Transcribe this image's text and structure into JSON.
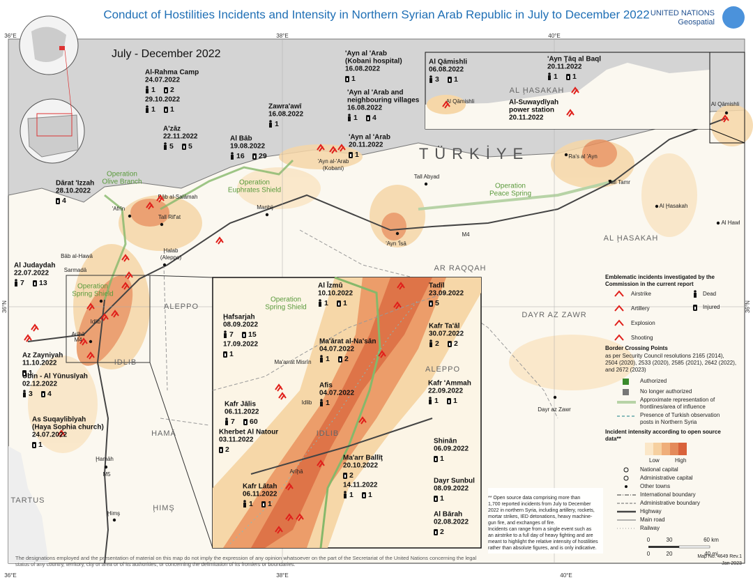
{
  "header": {
    "title": "Conduct of Hostilities Incidents and Intensity in Northern Syrian Arab Republic in July to December 2022",
    "org": "UNITED NATIONS",
    "sub": "Geospatial"
  },
  "period": "July - December 2022",
  "graticule": [
    "36°E",
    "38°E",
    "40°E",
    "36°N",
    "36°N",
    "36°E",
    "38°E",
    "40°E"
  ],
  "places": [
    "TÜRKİYE",
    "ALEPPO",
    "IDLIB",
    "HAMĀ",
    "ḨIMŞ",
    "TARTUS",
    "AR RAQQAH",
    "DAYR AZ ZAWR",
    "AL ḨASAKAH",
    "Ḩalab",
    "(Aleppo)",
    "'Afrīn",
    "Tall Rif'at",
    "Bāb al-Salāmah",
    "Manbij",
    "Tall Abyad",
    "Ra's al 'Ayn",
    "Tall Tamr",
    "Al Ḩasakah",
    "Al Hawl",
    "'Ayn 'Īsā",
    "Al Qāmishli",
    "Dayr az Zawr",
    "Bāb al-Hawā",
    "Sarmadā",
    "Idlib",
    "Arīḩā",
    "Ḩamāh",
    "Ḩimş",
    "'Ayn al-'Arab",
    "(Kobani)",
    "M4",
    "M4",
    "M5",
    "Operation",
    "Olive Branch",
    "Operation",
    "Euphrates Shield",
    "Operation",
    "Peace Spring",
    "Operation",
    "Spring Shield",
    "Operation",
    "Spring Shield",
    "Ma'arrat Misrīn",
    "Idlib",
    "IDLIB",
    "ALEPPO",
    "Arīḩā",
    "AL ḨASAKAH",
    "Al Qāmishli"
  ],
  "incidents": [
    {
      "name": [
        "Al-Rahma Camp"
      ],
      "reports": [
        {
          "date": "24.07.2022",
          "dead": 1,
          "injured": 2
        },
        {
          "date": "29.10.2022",
          "dead": 1,
          "injured": 1
        }
      ]
    },
    {
      "name": [
        "A'zāz"
      ],
      "reports": [
        {
          "date": "22.11.2022",
          "dead": 5,
          "injured": 5
        }
      ]
    },
    {
      "name": [
        "Al Bāb"
      ],
      "reports": [
        {
          "date": "19.08.2022",
          "dead": 16,
          "injured": 29
        }
      ]
    },
    {
      "name": [
        "Zawra'awī"
      ],
      "reports": [
        {
          "date": "16.08.2022",
          "dead": 1
        }
      ]
    },
    {
      "name": [
        "'Ayn al 'Arab",
        "(Kobani hospital)"
      ],
      "reports": [
        {
          "date": "16.08.2022",
          "injured": 1
        }
      ]
    },
    {
      "name": [
        "'Ayn al 'Arab and",
        "neighbouring villages"
      ],
      "reports": [
        {
          "date": "16.08.2022",
          "dead": 1,
          "injured": 4
        }
      ]
    },
    {
      "name": [
        "'Ayn al 'Arab"
      ],
      "reports": [
        {
          "date": "20.11.2022",
          "injured": 1
        }
      ]
    },
    {
      "name": [
        "Dārat 'Izzah"
      ],
      "reports": [
        {
          "date": "28.10.2022",
          "injured": 4
        }
      ]
    },
    {
      "name": [
        "Al Judaydah"
      ],
      "reports": [
        {
          "date": "22.07.2022",
          "dead": 7,
          "injured": 13
        }
      ]
    },
    {
      "name": [
        "Az Zayniyah"
      ],
      "reports": [
        {
          "date": "11.10.2022",
          "injured": 1
        }
      ]
    },
    {
      "name": [
        "Ūbin - Al Yūnusīyah"
      ],
      "reports": [
        {
          "date": "02.12.2022",
          "dead": 3,
          "injured": 4
        }
      ]
    },
    {
      "name": [
        "As Suqaylibīyah",
        "(Haya Sophia church)"
      ],
      "reports": [
        {
          "date": "24.07.2022",
          "injured": 1
        }
      ]
    },
    {
      "name": [
        "Al Qāmishli"
      ],
      "reports": [
        {
          "date": "06.08.2022",
          "dead": 3,
          "injured": 1
        }
      ]
    },
    {
      "name": [
        "'Ayn Ţāq al Baql"
      ],
      "reports": [
        {
          "date": "20.11.2022",
          "dead": 1,
          "injured": 1
        }
      ]
    },
    {
      "name": [
        "Al-Suwaydīyah",
        "power station"
      ],
      "reports": [
        {
          "date": "20.11.2022"
        }
      ]
    },
    {
      "name": [
        "Al Īzmū"
      ],
      "reports": [
        {
          "date": "10.10.2022",
          "dead": 1,
          "injured": 1
        }
      ]
    },
    {
      "name": [
        "Tadīl"
      ],
      "reports": [
        {
          "date": "23.09.2022",
          "injured": 5
        }
      ]
    },
    {
      "name": [
        "Kafr Ta'āl"
      ],
      "reports": [
        {
          "date": "30.07.2022",
          "dead": 2,
          "injured": 2
        }
      ]
    },
    {
      "name": [
        "Ḩafsarjah"
      ],
      "reports": [
        {
          "date": "08.09.2022",
          "dead": 7,
          "injured": 15
        },
        {
          "date": "17.09.2022",
          "injured": 1
        }
      ]
    },
    {
      "name": [
        "Ma'ārat al-Na'sān"
      ],
      "reports": [
        {
          "date": "04.07.2022",
          "dead": 1,
          "injured": 2
        }
      ]
    },
    {
      "name": [
        "Afis"
      ],
      "reports": [
        {
          "date": "04.07.2022",
          "dead": 1
        }
      ]
    },
    {
      "name": [
        "Kafr 'Ammah"
      ],
      "reports": [
        {
          "date": "22.09.2022",
          "dead": 1,
          "injured": 1
        }
      ]
    },
    {
      "name": [
        "Kafr Jālis"
      ],
      "reports": [
        {
          "date": "06.11.2022",
          "dead": 7,
          "injured": 60
        }
      ]
    },
    {
      "name": [
        "Kherbet Al Natour"
      ],
      "reports": [
        {
          "date": "03.11.2022",
          "injured": 2
        }
      ]
    },
    {
      "name": [
        "Shinān"
      ],
      "reports": [
        {
          "date": "06.09.2022",
          "injured": 1
        }
      ]
    },
    {
      "name": [
        "Ma'arr Ballīţ"
      ],
      "reports": [
        {
          "date": "20.10.2022",
          "injured": 2
        },
        {
          "date": "14.11.2022",
          "dead": 1,
          "injured": 1
        }
      ]
    },
    {
      "name": [
        "Kafr Lātah"
      ],
      "reports": [
        {
          "date": "06.11.2022",
          "dead": 1,
          "injured": 1
        }
      ]
    },
    {
      "name": [
        "Dayr Sunbul"
      ],
      "reports": [
        {
          "date": "08.09.2022",
          "injured": 1
        }
      ]
    },
    {
      "name": [
        "Al Bārah"
      ],
      "reports": [
        {
          "date": "02.08.2022",
          "injured": 2
        }
      ]
    }
  ],
  "legend": {
    "title": [
      "Emblematic incidents investigated by the",
      "Commission in the current report"
    ],
    "events": [
      "Airstrike",
      "Artillery",
      "Explosion",
      "Shooting"
    ],
    "casualties": [
      "Dead",
      "Injured"
    ],
    "crossing_title": "Border Crossing Points",
    "crossing_note": [
      "as per Security Council resolutions 2165 (2014),",
      "2504 (2020), 2533 (2020), 2585 (2021), 2642 (2022),",
      "and 2672 (2023)"
    ],
    "crossing_items": [
      "Authorized",
      "No longer authorized"
    ],
    "frontline": [
      "Approximate representation of",
      "frontlines/area of influence"
    ],
    "turkish": [
      "Presence of Turkish observation",
      "posts in Northern Syria"
    ],
    "intensity_title": [
      "Incident intensity according to open source",
      "data**"
    ],
    "low": "Low",
    "high": "High",
    "symbols": [
      "National capital",
      "Administrative capital",
      "Other towns",
      "International boundary",
      "Administrative boundary",
      "Highway",
      "Main road",
      "Railway"
    ]
  },
  "footnote": [
    "** Open source data comprising more than",
    "1,700 reported incidents from July to December",
    "2022 in northern Syria, including artillery, rockets,",
    "mortar strikes, IED detonations, heavy machine-",
    "gun fire, and exchanges of fire.",
    "Incidents can range from a single event such as",
    "an airstrike to a full day of heavy fighting and are",
    "meant to highlight the relative intensity of hostilities",
    "rather than absolute figures, and is only indicative."
  ],
  "scale": [
    "0",
    "30",
    "60 km",
    "0",
    "20",
    "40 mi"
  ],
  "disclaimer": [
    "The designations employed and the presentation of material on this map do not imply the expression of any opinion whatsoever on the part of the Secretariat of the United Nations concerning the legal",
    "status of any country, territory, city or area or of its authorities, or concerning the delimitation of its frontiers or boundaries."
  ],
  "map_no": [
    "Map No. 4649 Rev.1",
    "Jan 2023"
  ]
}
